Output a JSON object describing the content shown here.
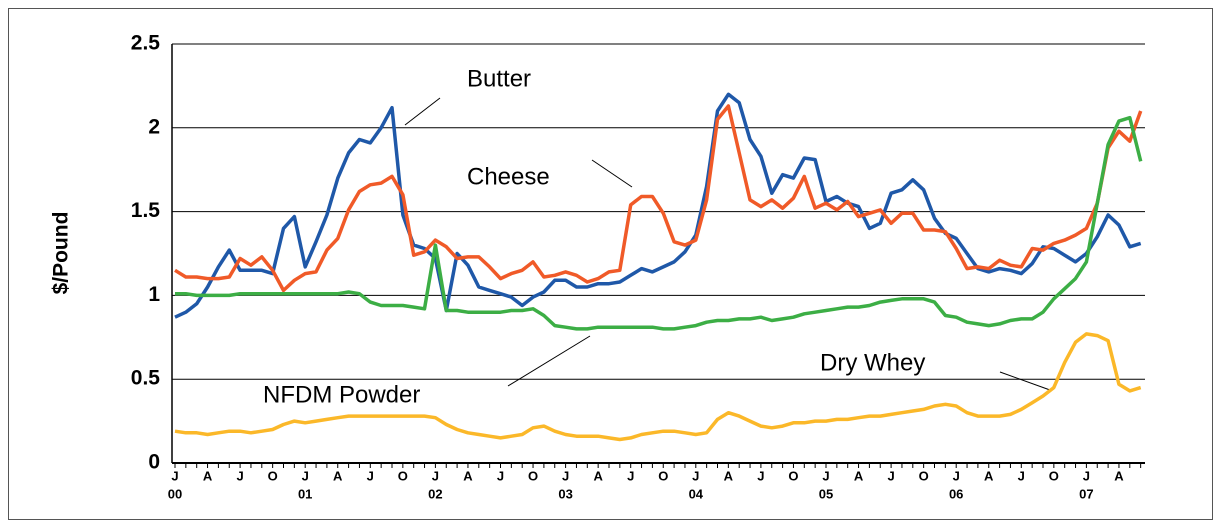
{
  "chart_data": {
    "type": "line",
    "y_label": "$/Pound",
    "categories": [
      "J",
      null,
      null,
      "A",
      null,
      null,
      "J",
      null,
      null,
      "O",
      null,
      null,
      "J",
      null,
      null,
      "A",
      null,
      null,
      "J",
      null,
      null,
      "O",
      null,
      null,
      "J",
      null,
      null,
      "A",
      null,
      null,
      "J",
      null,
      null,
      "O",
      null,
      null,
      "J",
      null,
      null,
      "A",
      null,
      null,
      "J",
      null,
      null,
      "O",
      null,
      null,
      "J",
      null,
      null,
      "A",
      null,
      null,
      "J",
      null,
      null,
      "O",
      null,
      null,
      "J",
      null,
      null,
      "A",
      null,
      null,
      "J",
      null,
      null,
      "O",
      null,
      null,
      "J",
      null,
      null,
      "A",
      null,
      null,
      "J",
      null,
      null,
      "O",
      null,
      null,
      "J",
      null,
      null,
      "A",
      null,
      null
    ],
    "years": [
      "00",
      "01",
      "02",
      "03",
      "04",
      "05",
      "06",
      "07"
    ],
    "ylim": [
      0,
      2.5
    ],
    "yticks": [
      0,
      0.5,
      1,
      1.5,
      2,
      2.5
    ],
    "grid": true,
    "series": [
      {
        "name": "Butter",
        "color": "#1f58a8",
        "values": [
          0.87,
          0.9,
          0.95,
          1.05,
          1.17,
          1.27,
          1.15,
          1.15,
          1.15,
          1.13,
          1.4,
          1.47,
          1.17,
          1.32,
          1.48,
          1.7,
          1.85,
          1.93,
          1.91,
          2.0,
          2.12,
          1.48,
          1.3,
          1.28,
          1.22,
          0.91,
          1.25,
          1.18,
          1.05,
          1.03,
          1.01,
          0.99,
          0.94,
          0.99,
          1.02,
          1.09,
          1.09,
          1.05,
          1.05,
          1.07,
          1.07,
          1.08,
          1.12,
          1.16,
          1.14,
          1.17,
          1.2,
          1.26,
          1.36,
          1.65,
          2.1,
          2.2,
          2.15,
          1.93,
          1.83,
          1.61,
          1.72,
          1.7,
          1.82,
          1.81,
          1.56,
          1.59,
          1.55,
          1.53,
          1.4,
          1.43,
          1.61,
          1.63,
          1.69,
          1.63,
          1.46,
          1.37,
          1.34,
          1.25,
          1.16,
          1.14,
          1.16,
          1.15,
          1.13,
          1.19,
          1.29,
          1.28,
          1.24,
          1.2,
          1.25,
          1.35,
          1.48,
          1.42,
          1.29,
          1.31
        ]
      },
      {
        "name": "Cheese",
        "color": "#f05a28",
        "values": [
          1.15,
          1.11,
          1.11,
          1.1,
          1.1,
          1.11,
          1.22,
          1.18,
          1.23,
          1.15,
          1.03,
          1.09,
          1.13,
          1.14,
          1.27,
          1.34,
          1.51,
          1.62,
          1.66,
          1.67,
          1.71,
          1.6,
          1.24,
          1.26,
          1.33,
          1.29,
          1.22,
          1.23,
          1.23,
          1.17,
          1.1,
          1.13,
          1.15,
          1.2,
          1.11,
          1.12,
          1.14,
          1.12,
          1.08,
          1.1,
          1.14,
          1.15,
          1.54,
          1.59,
          1.59,
          1.49,
          1.32,
          1.3,
          1.33,
          1.57,
          2.05,
          2.13,
          1.85,
          1.57,
          1.53,
          1.57,
          1.52,
          1.58,
          1.71,
          1.52,
          1.55,
          1.51,
          1.56,
          1.47,
          1.49,
          1.51,
          1.43,
          1.49,
          1.49,
          1.39,
          1.39,
          1.38,
          1.28,
          1.16,
          1.17,
          1.16,
          1.21,
          1.18,
          1.17,
          1.28,
          1.27,
          1.31,
          1.33,
          1.36,
          1.4,
          1.55,
          1.88,
          1.98,
          1.92,
          2.1
        ]
      },
      {
        "name": "NFDM Powder",
        "color": "#3cae45",
        "values": [
          1.01,
          1.01,
          1.0,
          1.0,
          1.0,
          1.0,
          1.01,
          1.01,
          1.01,
          1.01,
          1.01,
          1.01,
          1.01,
          1.01,
          1.01,
          1.01,
          1.02,
          1.01,
          0.96,
          0.94,
          0.94,
          0.94,
          0.93,
          0.92,
          1.3,
          0.91,
          0.91,
          0.9,
          0.9,
          0.9,
          0.9,
          0.91,
          0.91,
          0.92,
          0.88,
          0.82,
          0.81,
          0.8,
          0.8,
          0.81,
          0.81,
          0.81,
          0.81,
          0.81,
          0.81,
          0.8,
          0.8,
          0.81,
          0.82,
          0.84,
          0.85,
          0.85,
          0.86,
          0.86,
          0.87,
          0.85,
          0.86,
          0.87,
          0.89,
          0.9,
          0.91,
          0.92,
          0.93,
          0.93,
          0.94,
          0.96,
          0.97,
          0.98,
          0.98,
          0.98,
          0.96,
          0.88,
          0.87,
          0.84,
          0.83,
          0.82,
          0.83,
          0.85,
          0.86,
          0.86,
          0.9,
          0.98,
          1.04,
          1.1,
          1.2,
          1.55,
          1.9,
          2.04,
          2.06,
          1.8
        ]
      },
      {
        "name": "Dry Whey",
        "color": "#fbb829",
        "values": [
          0.19,
          0.18,
          0.18,
          0.17,
          0.18,
          0.19,
          0.19,
          0.18,
          0.19,
          0.2,
          0.23,
          0.25,
          0.24,
          0.25,
          0.26,
          0.27,
          0.28,
          0.28,
          0.28,
          0.28,
          0.28,
          0.28,
          0.28,
          0.28,
          0.27,
          0.23,
          0.2,
          0.18,
          0.17,
          0.16,
          0.15,
          0.16,
          0.17,
          0.21,
          0.22,
          0.19,
          0.17,
          0.16,
          0.16,
          0.16,
          0.15,
          0.14,
          0.15,
          0.17,
          0.18,
          0.19,
          0.19,
          0.18,
          0.17,
          0.18,
          0.26,
          0.3,
          0.28,
          0.25,
          0.22,
          0.21,
          0.22,
          0.24,
          0.24,
          0.25,
          0.25,
          0.26,
          0.26,
          0.27,
          0.28,
          0.28,
          0.29,
          0.3,
          0.31,
          0.32,
          0.34,
          0.35,
          0.34,
          0.3,
          0.28,
          0.28,
          0.28,
          0.29,
          0.32,
          0.36,
          0.4,
          0.45,
          0.6,
          0.72,
          0.77,
          0.76,
          0.73,
          0.47,
          0.43,
          0.45
        ]
      }
    ]
  }
}
